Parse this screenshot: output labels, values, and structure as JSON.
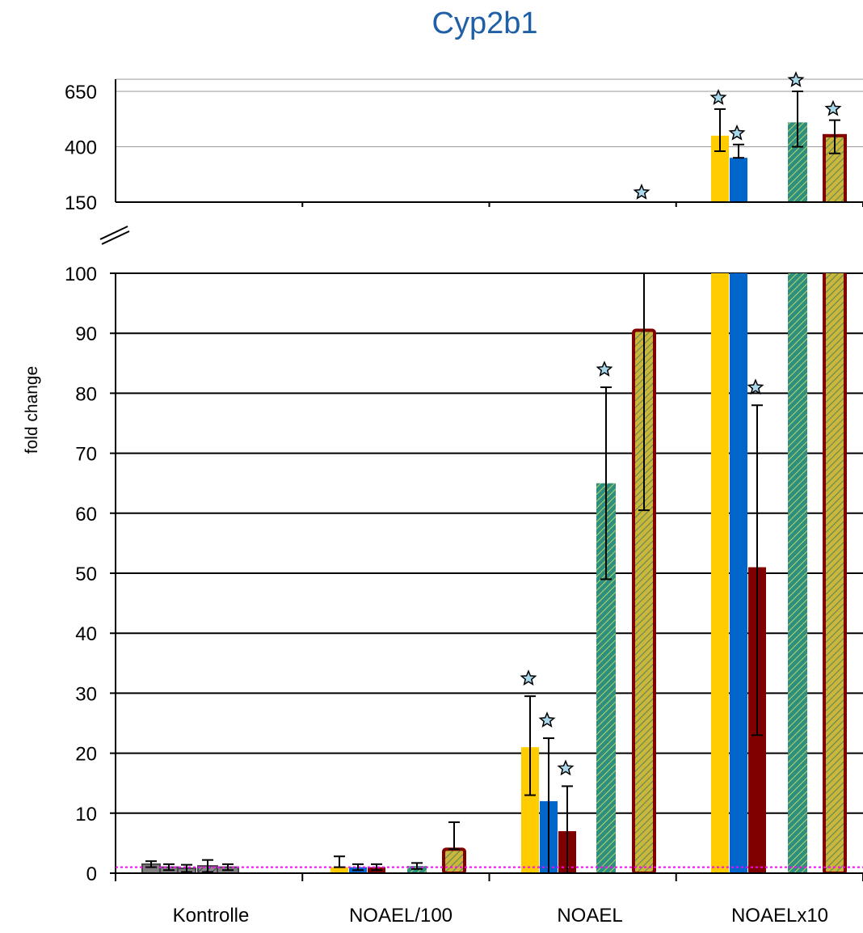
{
  "chart_data": {
    "type": "bar",
    "title": "Cyp2b1",
    "xlabel": "",
    "ylabel": "fold change",
    "categories": [
      "Kontrolle",
      "NOAEL/100",
      "NOAEL",
      "NOAELx10"
    ],
    "axis_break": true,
    "upper_panel": {
      "ylim": [
        150,
        700
      ],
      "ticks": [
        150,
        400,
        650
      ]
    },
    "lower_panel": {
      "ylim": [
        0,
        100
      ],
      "ticks": [
        0,
        10,
        20,
        30,
        40,
        50,
        60,
        70,
        80,
        90,
        100
      ]
    },
    "reference_line": 1,
    "series": [
      {
        "color": "#FFCC00",
        "pattern": "solid",
        "values": [
          1.5,
          1.0,
          21,
          450
        ],
        "err_low": [
          0.5,
          0,
          8,
          70
        ],
        "err_high": [
          0.5,
          1.8,
          8.5,
          120
        ],
        "significant": [
          false,
          false,
          true,
          true
        ]
      },
      {
        "color": "#0066CC",
        "pattern": "solid",
        "values": [
          1.0,
          1.0,
          12,
          350
        ],
        "err_low": [
          0.5,
          0.5,
          12,
          0
        ],
        "err_high": [
          0.5,
          0.5,
          10.5,
          60
        ],
        "significant": [
          false,
          false,
          true,
          true
        ]
      },
      {
        "color": "#800000",
        "pattern": "solid",
        "values": [
          0.8,
          1.0,
          7,
          51
        ],
        "err_low": [
          0.6,
          0.5,
          7,
          28
        ],
        "err_high": [
          0.6,
          0.5,
          7.5,
          27
        ],
        "significant": [
          false,
          false,
          true,
          true
        ]
      },
      {
        "color": "#1f9a8a",
        "pattern": "hatched",
        "values": [
          1.2,
          1.2,
          65,
          510
        ],
        "err_low": [
          1,
          0.5,
          16,
          110
        ],
        "err_high": [
          1,
          0.5,
          16,
          140
        ],
        "significant": [
          false,
          false,
          true,
          true
        ]
      },
      {
        "color": "#b5b53a",
        "pattern": "hatched-outlined",
        "values": [
          1.0,
          4.0,
          90.5,
          450
        ],
        "err_low": [
          0.5,
          0,
          30,
          80
        ],
        "err_high": [
          0.5,
          4.5,
          30,
          70
        ],
        "significant": [
          false,
          false,
          false,
          true
        ]
      }
    ],
    "extra_marker": {
      "category": "NOAEL",
      "series_index": 4,
      "significant": true
    },
    "grid": true,
    "legend": "none"
  }
}
